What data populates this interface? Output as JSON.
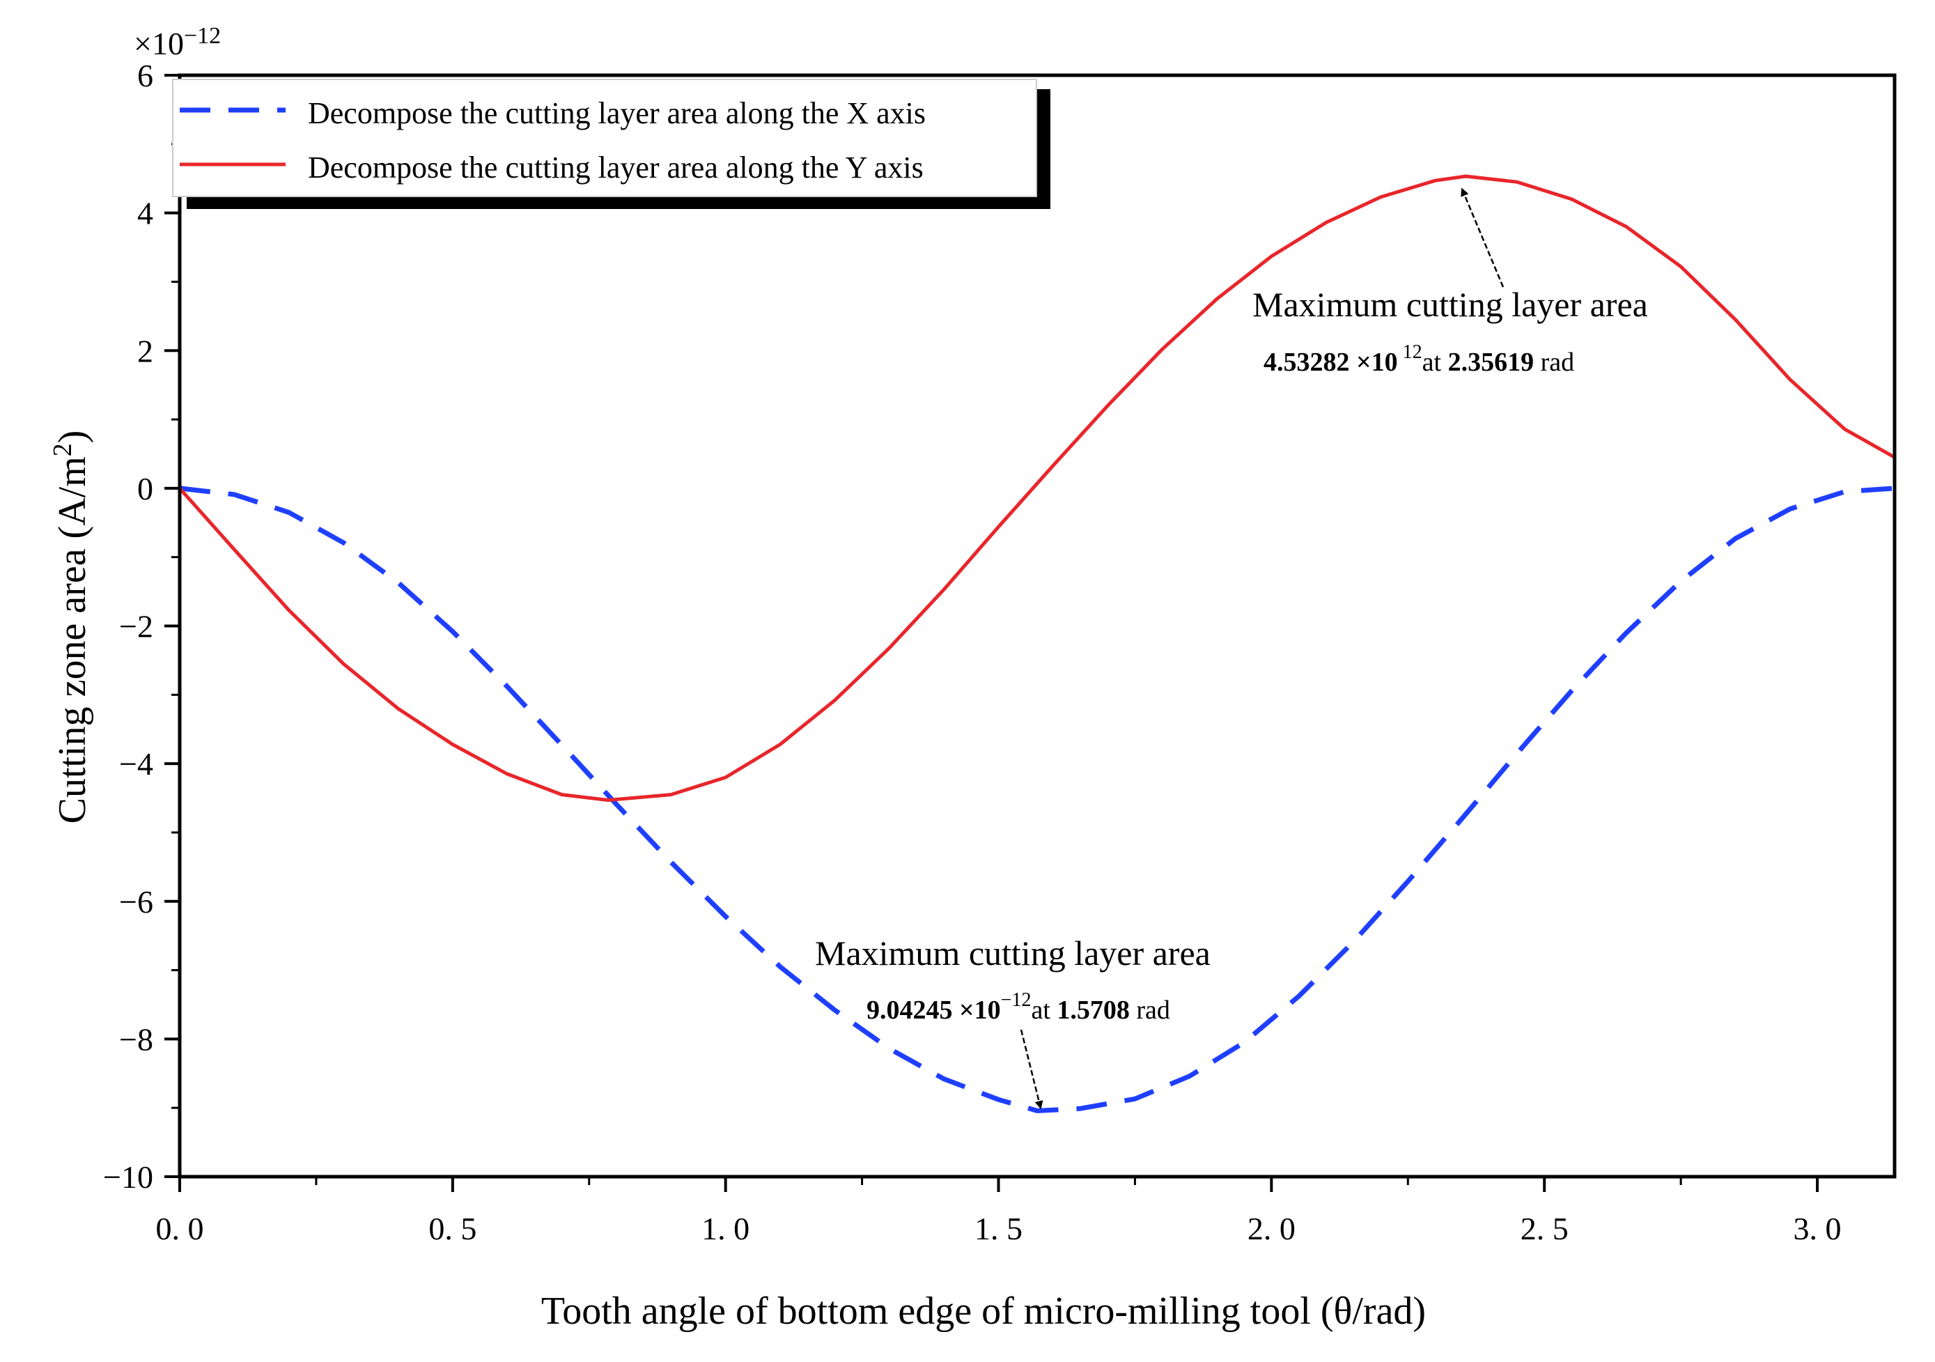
{
  "chart_data": {
    "type": "line",
    "title": "",
    "xlabel": "Tooth angle of bottom edge of micro-milling tool  (θ/rad)",
    "ylabel": "Cutting zone area (A/m",
    "ylabel_sup": "2",
    "ylabel_close": ")",
    "y_multiplier": "×10",
    "y_multiplier_exp": "−12",
    "xlim": [
      0,
      3.14159
    ],
    "ylim": [
      -10,
      6
    ],
    "x_ticks": [
      0,
      0.5,
      1.0,
      1.5,
      2.0,
      2.5,
      3.0
    ],
    "x_tick_labels": [
      "0. 0",
      "0. 5",
      "1. 0",
      "1. 5",
      "2. 0",
      "2. 5",
      "3. 0"
    ],
    "y_ticks": [
      -10,
      -8,
      -6,
      -4,
      -2,
      0,
      2,
      4,
      6
    ],
    "y_tick_labels": [
      "−10",
      "−8",
      "−6",
      "−4",
      "−2",
      "0",
      "2",
      "4",
      "6"
    ],
    "legend_position": "top-left",
    "series": [
      {
        "name": "Decompose the cutting layer area along the X axis",
        "color": "#1f3fff",
        "style": "dashed",
        "x": [
          0,
          0.1,
          0.2,
          0.3,
          0.4,
          0.5,
          0.6,
          0.7,
          0.8,
          0.9,
          1.0,
          1.1,
          1.2,
          1.3,
          1.4,
          1.5,
          1.5708,
          1.65,
          1.75,
          1.85,
          1.95,
          2.05,
          2.15,
          2.25,
          2.35,
          2.45,
          2.55,
          2.65,
          2.75,
          2.85,
          2.95,
          3.05,
          3.14159
        ],
        "values": [
          0,
          -0.09,
          -0.35,
          -0.79,
          -1.37,
          -2.08,
          -2.88,
          -3.73,
          -4.59,
          -5.43,
          -6.22,
          -6.95,
          -7.58,
          -8.14,
          -8.58,
          -8.88,
          -9.04245,
          -9.01,
          -8.87,
          -8.54,
          -8.05,
          -7.38,
          -6.59,
          -5.71,
          -4.79,
          -3.85,
          -2.94,
          -2.1,
          -1.35,
          -0.73,
          -0.3,
          -0.05,
          0
        ]
      },
      {
        "name": "Decompose the cutting layer area along the Y axis",
        "color": "#e8262b",
        "style": "solid",
        "x": [
          0,
          0.1,
          0.2,
          0.3,
          0.4,
          0.5,
          0.6,
          0.7,
          0.785,
          0.9,
          1.0,
          1.1,
          1.2,
          1.3,
          1.4,
          1.5,
          1.6,
          1.7,
          1.8,
          1.9,
          2.0,
          2.1,
          2.2,
          2.3,
          2.35619,
          2.45,
          2.55,
          2.65,
          2.75,
          2.85,
          2.95,
          3.05,
          3.14159
        ],
        "values": [
          0,
          -0.89,
          -1.77,
          -2.55,
          -3.2,
          -3.72,
          -4.15,
          -4.45,
          -4.53,
          -4.45,
          -4.2,
          -3.72,
          -3.08,
          -2.32,
          -1.47,
          -0.56,
          0.33,
          1.2,
          2.02,
          2.75,
          3.37,
          3.86,
          4.23,
          4.47,
          4.53282,
          4.45,
          4.2,
          3.8,
          3.22,
          2.45,
          1.58,
          0.86,
          0.45
        ]
      }
    ],
    "annotations": [
      {
        "title": "Maximum cutting layer area",
        "value": "4.53282 ×10",
        "value_exp": " 12",
        "at": "at",
        "x_value": "2.35619",
        "unit": "rad",
        "target_x": 2.35619,
        "target_y": 4.53282
      },
      {
        "title": "Maximum cutting layer area",
        "value": "9.04245 ×10",
        "value_exp": "−12",
        "at": "at",
        "x_value": "1.5708",
        "unit": "rad",
        "target_x": 1.5708,
        "target_y": -9.04245
      }
    ]
  }
}
